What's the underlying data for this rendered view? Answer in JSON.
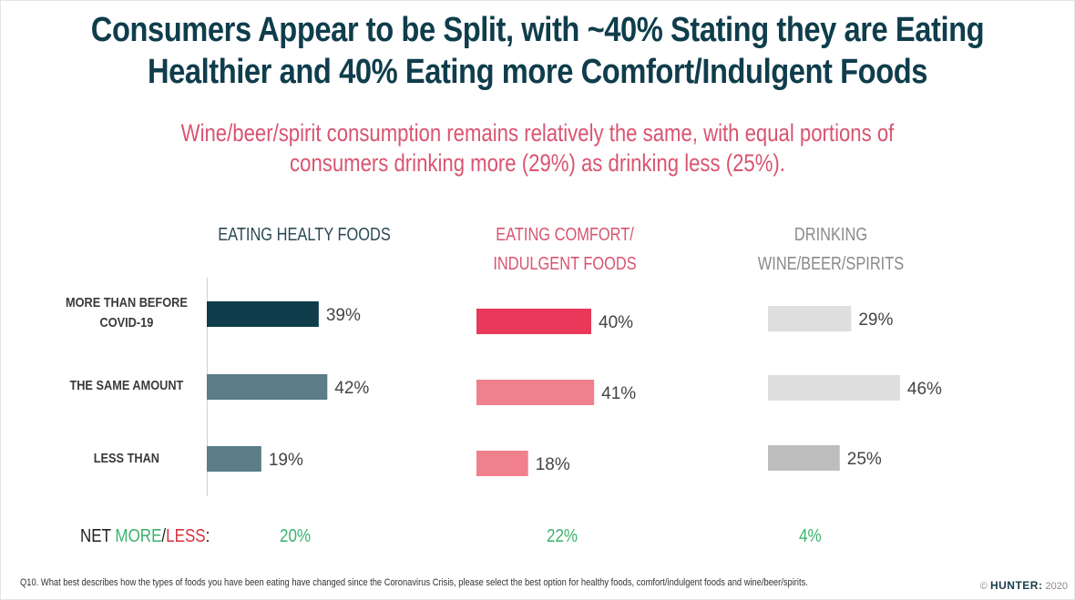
{
  "title_line1": "Consumers Appear to be Split, with ~40% Stating they are Eating",
  "title_line2": "Healthier and 40% Eating more Comfort/Indulgent Foods",
  "subtitle_line1": "Wine/beer/spirit consumption remains relatively the same, with equal portions of",
  "subtitle_line2": "consumers drinking more (29%) as drinking less (25%).",
  "net": {
    "label_prefix": "NET ",
    "label_more": "MORE",
    "label_slash": "/",
    "label_less": "LESS",
    "label_suffix": ":",
    "colors": {
      "more": "#3bb26d",
      "less": "#d9303f"
    },
    "values": [
      "20%",
      "22%",
      "4%"
    ]
  },
  "footnote": "Q10. What best describes how the types of foods you have been eating have changed since the Coronavirus Crisis, please select the best option for healthy foods, comfort/indulgent foods and wine/beer/spirits.",
  "brand": {
    "copyright": "©",
    "name": "HUNTER:",
    "year": "2020"
  },
  "chart_data": {
    "type": "bar",
    "orientation": "horizontal",
    "categories": [
      "MORE THAN BEFORE COVID-19",
      "THE SAME AMOUNT",
      "LESS THAN"
    ],
    "category_lines": [
      [
        "MORE THAN BEFORE",
        "COVID-19"
      ],
      [
        "THE SAME AMOUNT"
      ],
      [
        "LESS THAN"
      ]
    ],
    "unit": "%",
    "series": [
      {
        "name": "EATING HEALTY FOODS",
        "name_lines": [
          "EATING HEALTY FOODS"
        ],
        "header_color": "#2b4a55",
        "values": [
          39,
          42,
          19
        ],
        "colors": [
          "#0f3d4c",
          "#5a7d87",
          "#5a7d87"
        ]
      },
      {
        "name": "EATING COMFORT/ INDULGENT FOODS",
        "name_lines": [
          "EATING COMFORT/",
          "INDULGENT FOODS"
        ],
        "header_color": "#d9546f",
        "values": [
          40,
          41,
          18
        ],
        "colors": [
          "#e8395a",
          "#f1808f",
          "#f1808f"
        ]
      },
      {
        "name": "DRINKING WINE/BEER/SPIRITS",
        "name_lines": [
          "DRINKING",
          "WINE/BEER/SPIRITS"
        ],
        "header_color": "#8a8a8a",
        "values": [
          29,
          46,
          25
        ],
        "colors": [
          "#dededf",
          "#dededf",
          "#bdbdbd"
        ]
      }
    ],
    "net_more_less": [
      20,
      22,
      4
    ],
    "title": "Consumers Appear to be Split, with ~40% Stating they are Eating Healthier and 40% Eating more Comfort/Indulgent Foods",
    "xlabel": "",
    "ylabel": "",
    "grid": false,
    "legend": "none"
  }
}
